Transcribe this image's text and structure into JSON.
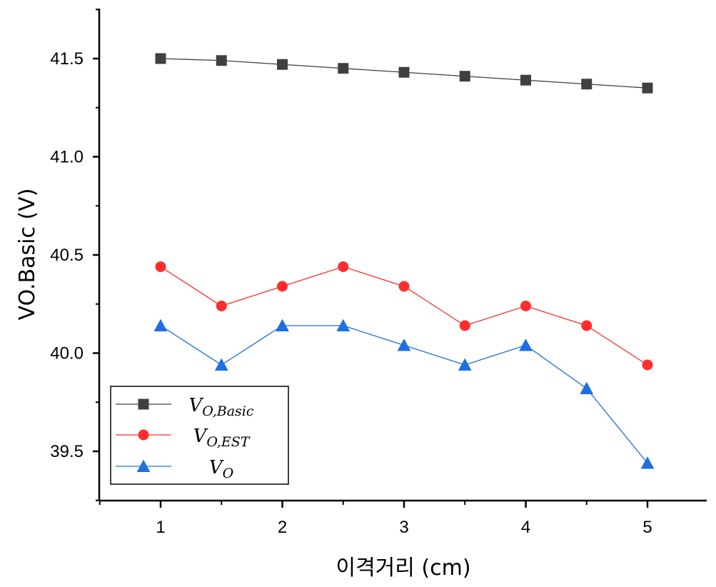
{
  "chart_data": {
    "type": "line",
    "xlabel": "이격거리 (cm)",
    "ylabel": "VO.Basic (V)",
    "xlim": [
      0.5,
      5.5
    ],
    "ylim": [
      39.27,
      41.75
    ],
    "x_ticks": [
      1,
      2,
      3,
      4,
      5
    ],
    "x_tick_labels": [
      "1",
      "2",
      "3",
      "4",
      "5"
    ],
    "y_ticks": [
      39.5,
      40.0,
      40.5,
      41.0,
      41.5
    ],
    "y_tick_labels": [
      "39.5",
      "40.0",
      "40.5",
      "41.0",
      "41.5"
    ],
    "x": [
      1,
      1.5,
      2,
      2.5,
      3,
      3.5,
      4,
      4.5,
      5
    ],
    "grid": false,
    "legend_position": "bottom-left",
    "series": [
      {
        "name": "V",
        "subscript": "O,Basic",
        "color": "#404040",
        "marker": "square",
        "values": [
          41.5,
          41.49,
          41.47,
          41.45,
          41.43,
          41.41,
          41.39,
          41.37,
          41.35
        ]
      },
      {
        "name": "V",
        "subscript": "O,EST",
        "color": "#ff2d2d",
        "marker": "circle",
        "values": [
          40.44,
          40.24,
          40.34,
          40.44,
          40.34,
          40.14,
          40.24,
          40.14,
          39.94
        ]
      },
      {
        "name": "V",
        "subscript": "O",
        "color": "#1f6fe0",
        "marker": "triangle",
        "values": [
          40.14,
          39.94,
          40.14,
          40.14,
          40.04,
          39.94,
          40.04,
          39.82,
          39.44
        ]
      }
    ]
  }
}
